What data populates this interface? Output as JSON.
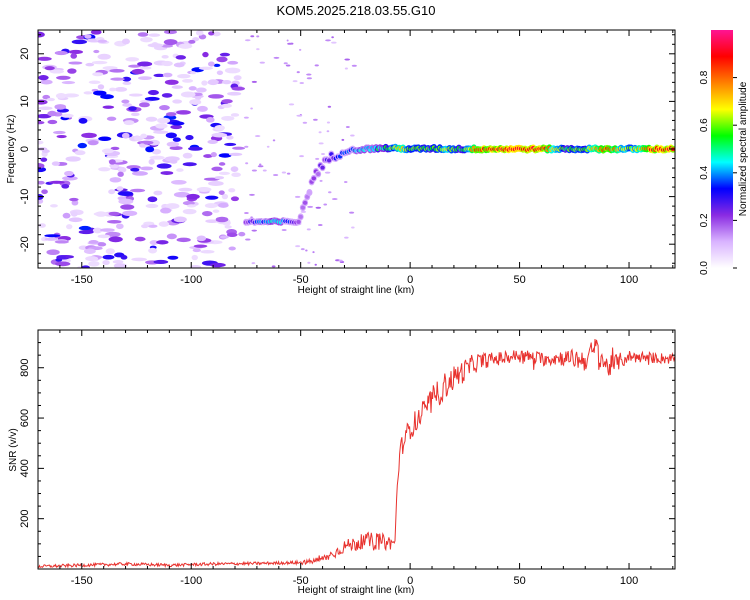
{
  "title": "KOM5.2025.218.03.55.G10",
  "colors": {
    "snr_line": "#e8322e",
    "axis": "#000000",
    "background": "#ffffff"
  },
  "chart_data": [
    {
      "type": "heatmap",
      "title": "KOM5.2025.218.03.55.G10",
      "xlabel": "Height of straight line (km)",
      "ylabel": "Frequency (Hz)",
      "xlim": [
        -170,
        121
      ],
      "ylim": [
        -25,
        25
      ],
      "xticks": [
        -150,
        -100,
        -50,
        0,
        50,
        100
      ],
      "yticks": [
        -20,
        -10,
        0,
        10,
        20
      ],
      "colorbar": {
        "label": "Normalized spectral amplitude",
        "range": [
          0,
          1
        ],
        "ticks": [
          0.0,
          0.2,
          0.4,
          0.6,
          0.8
        ],
        "colormap": "gist_rainbow_r",
        "stops": [
          "#ffffff",
          "#d9b3ff",
          "#8a2be2",
          "#0000ff",
          "#00ffff",
          "#00ff00",
          "#ffff00",
          "#ff8000",
          "#ff0000",
          "#ff1493"
        ]
      },
      "noise_region": {
        "x": [
          -170,
          -78
        ],
        "y": [
          -25,
          25
        ],
        "amplitude": [
          0.05,
          0.35
        ]
      },
      "trace": [
        {
          "x": -75,
          "y": -15.3,
          "amp": 0.2
        },
        {
          "x": -72,
          "y": -15.3,
          "amp": 0.3
        },
        {
          "x": -69,
          "y": -15.3,
          "amp": 0.35
        },
        {
          "x": -66,
          "y": -15.3,
          "amp": 0.4
        },
        {
          "x": -63,
          "y": -15.3,
          "amp": 0.42
        },
        {
          "x": -60,
          "y": -15.3,
          "amp": 0.45
        },
        {
          "x": -57,
          "y": -15.3,
          "amp": 0.35
        },
        {
          "x": -54,
          "y": -15.3,
          "amp": 0.3
        },
        {
          "x": -51,
          "y": -15.3,
          "amp": 0.22
        },
        {
          "x": -49,
          "y": -13.0,
          "amp": 0.15
        },
        {
          "x": -47,
          "y": -10.0,
          "amp": 0.15
        },
        {
          "x": -45,
          "y": -7.0,
          "amp": 0.18
        },
        {
          "x": -43,
          "y": -5.0,
          "amp": 0.2
        },
        {
          "x": -40,
          "y": -3.5,
          "amp": 0.22
        },
        {
          "x": -37,
          "y": -2.0,
          "amp": 0.25
        },
        {
          "x": -33,
          "y": -1.0,
          "amp": 0.3
        },
        {
          "x": -28,
          "y": -0.3,
          "amp": 0.35
        },
        {
          "x": -20,
          "y": 0.0,
          "amp": 0.45
        },
        {
          "x": -12,
          "y": 0.2,
          "amp": 0.5
        },
        {
          "x": -5,
          "y": 0.1,
          "amp": 0.7
        },
        {
          "x": 2,
          "y": 0.0,
          "amp": 0.6
        },
        {
          "x": 10,
          "y": 0.1,
          "amp": 0.55
        },
        {
          "x": 18,
          "y": 0.0,
          "amp": 0.65
        },
        {
          "x": 24,
          "y": 0.0,
          "amp": 0.5
        },
        {
          "x": 30,
          "y": 0.0,
          "amp": 0.85
        },
        {
          "x": 45,
          "y": 0.0,
          "amp": 0.9
        },
        {
          "x": 60,
          "y": 0.0,
          "amp": 0.9
        },
        {
          "x": 70,
          "y": 0.0,
          "amp": 0.55
        },
        {
          "x": 80,
          "y": 0.0,
          "amp": 0.6
        },
        {
          "x": 90,
          "y": 0.0,
          "amp": 0.85
        },
        {
          "x": 100,
          "y": 0.0,
          "amp": 0.6
        },
        {
          "x": 110,
          "y": 0.0,
          "amp": 0.88
        },
        {
          "x": 121,
          "y": 0.0,
          "amp": 0.9
        }
      ]
    },
    {
      "type": "line",
      "xlabel": "Height of straight line (km)",
      "ylabel": "SNR (v/v)",
      "xlim": [
        -170,
        121
      ],
      "ylim": [
        0,
        950
      ],
      "xticks": [
        -150,
        -100,
        -50,
        0,
        50,
        100
      ],
      "yticks": [
        200,
        400,
        600,
        800
      ],
      "series": [
        {
          "x": [
            -170,
            -150,
            -130,
            -110,
            -90,
            -70,
            -55,
            -50,
            -45,
            -40,
            -35,
            -30,
            -25,
            -20,
            -15,
            -10,
            -7,
            -6,
            -5,
            -3,
            0,
            5,
            10,
            15,
            20,
            25,
            30,
            35,
            40,
            50,
            60,
            70,
            80,
            85,
            90,
            100,
            110,
            121
          ],
          "y": [
            10,
            15,
            20,
            15,
            20,
            22,
            25,
            25,
            30,
            40,
            60,
            90,
            100,
            115,
            110,
            105,
            100,
            300,
            450,
            510,
            560,
            610,
            670,
            720,
            760,
            790,
            820,
            830,
            835,
            850,
            835,
            840,
            830,
            880,
            800,
            845,
            840,
            835
          ],
          "noise_amplitude": [
            6,
            6,
            6,
            6,
            6,
            6,
            6,
            8,
            10,
            14,
            20,
            25,
            30,
            30,
            35,
            30,
            20,
            40,
            45,
            40,
            45,
            50,
            55,
            55,
            50,
            45,
            40,
            30,
            28,
            25,
            28,
            32,
            45,
            50,
            45,
            25,
            22,
            22
          ]
        }
      ]
    }
  ]
}
